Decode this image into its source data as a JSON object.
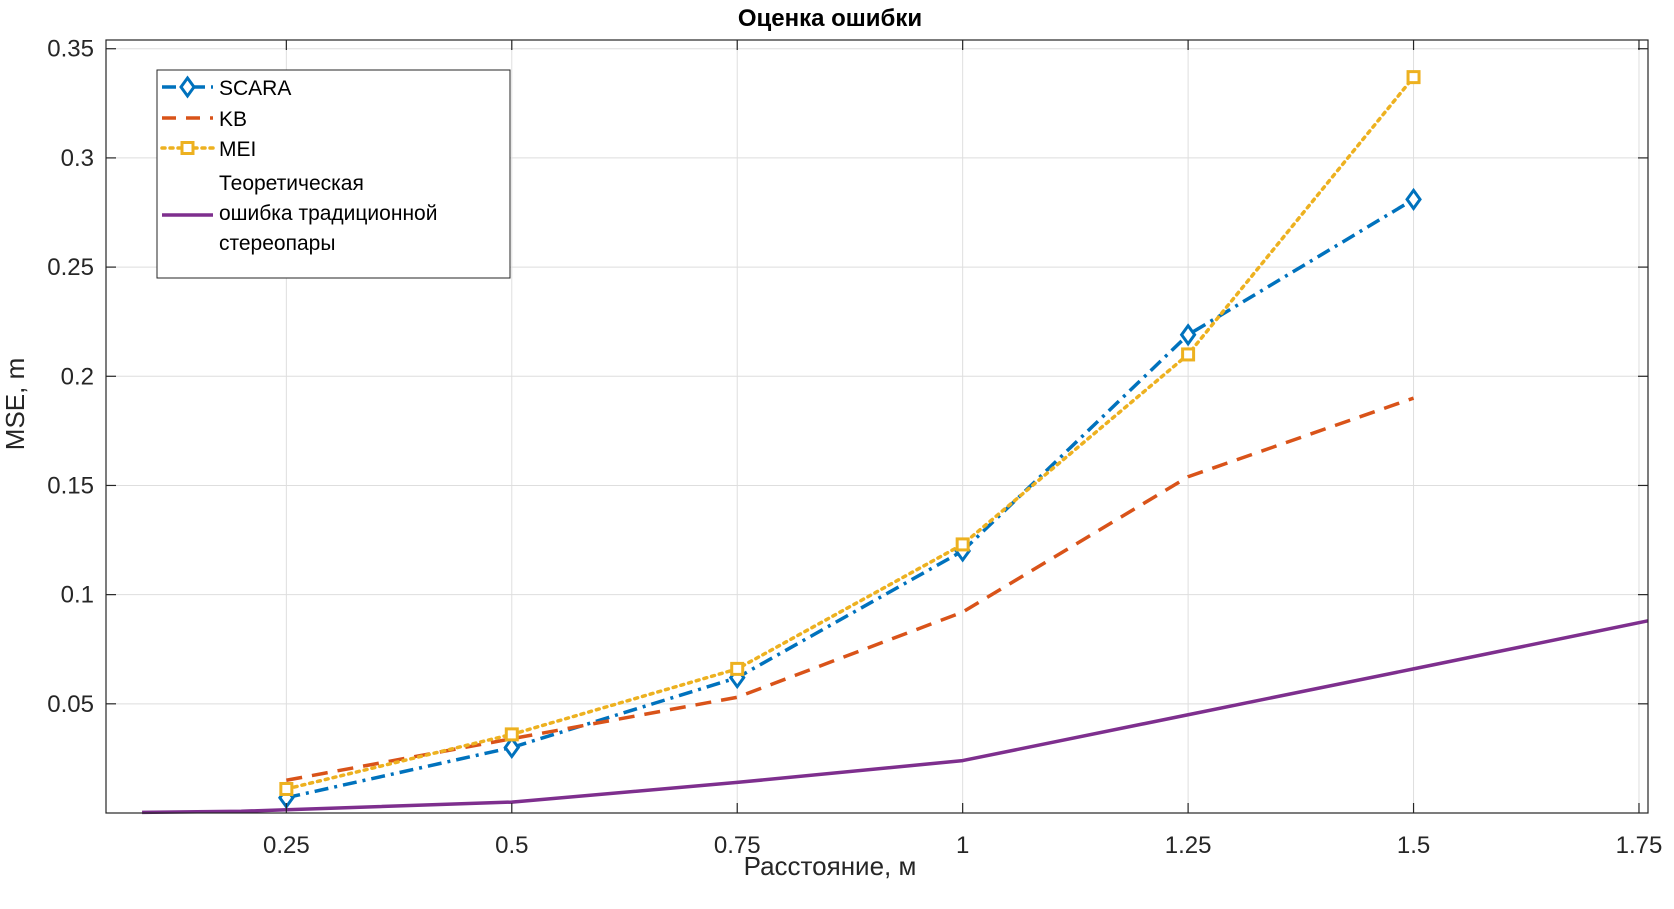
{
  "chart_data": {
    "type": "line",
    "title": "Оценка ошибки",
    "xlabel": "Расстояние, м",
    "ylabel": "MSE, m",
    "xlim": [
      0.05,
      1.76
    ],
    "ylim": [
      0.0,
      0.354
    ],
    "xticks": [
      0.25,
      0.5,
      0.75,
      1,
      1.25,
      1.5,
      1.75
    ],
    "xtick_labels": [
      "0.25",
      "0.5",
      "0.75",
      "1",
      "1.25",
      "1.5",
      "1.75"
    ],
    "yticks": [
      0.05,
      0.1,
      0.15,
      0.2,
      0.25,
      0.3,
      0.35
    ],
    "ytick_labels": [
      "0.05",
      "0.1",
      "0.15",
      "0.2",
      "0.25",
      "0.3",
      "0.35"
    ],
    "grid": true,
    "legend_position": "top-left",
    "series": [
      {
        "name": "SCARA",
        "color": "#0072BD",
        "style": "dash-dot",
        "marker": "diamond",
        "x": [
          0.25,
          0.5,
          0.75,
          1,
          1.25,
          1.5
        ],
        "y": [
          0.007,
          0.03,
          0.062,
          0.12,
          0.219,
          0.281
        ]
      },
      {
        "name": "KB",
        "color": "#D95319",
        "style": "dashed",
        "marker": "none",
        "x": [
          0.25,
          0.5,
          0.75,
          1,
          1.25,
          1.5
        ],
        "y": [
          0.015,
          0.034,
          0.053,
          0.092,
          0.154,
          0.19
        ]
      },
      {
        "name": "MEI",
        "color": "#EDB120",
        "style": "dotted",
        "marker": "square",
        "x": [
          0.25,
          0.5,
          0.75,
          1,
          1.25,
          1.5
        ],
        "y": [
          0.011,
          0.036,
          0.066,
          0.123,
          0.21,
          0.337
        ]
      },
      {
        "name": "Теоретическая ошибка традиционной стереопары",
        "legend_lines": [
          "Теоретическая",
          "ошибка традиционной",
          "стереопары"
        ],
        "color": "#7E2F8E",
        "style": "solid",
        "marker": "none",
        "x": [
          0.09,
          0.2,
          0.5,
          0.75,
          1.0,
          1.25,
          1.5,
          1.76
        ],
        "y": [
          0.0003,
          0.0008,
          0.005,
          0.014,
          0.024,
          0.045,
          0.066,
          0.088
        ]
      }
    ]
  }
}
